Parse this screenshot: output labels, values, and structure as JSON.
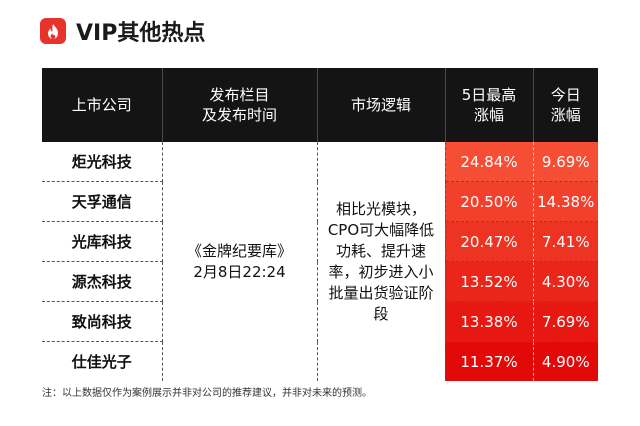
{
  "header": {
    "title": "VIP其他热点"
  },
  "colors": {
    "accent": "#e8332a",
    "header_bg": "#141414",
    "hot_red": "#ea1c14"
  },
  "table": {
    "headers": {
      "company": "上市公司",
      "column_line1": "发布栏目",
      "column_line2": "及发布时间",
      "logic": "市场逻辑",
      "gain5_line1": "5日最高",
      "gain5_line2": "涨幅",
      "today_line1": "今日",
      "today_line2": "涨幅"
    },
    "column_name": "《金牌纪要库》",
    "publish_time": "2月8日22:24",
    "logic_text": "相比光模块，CPO可大幅降低功耗、提升速率，初步进入小批量出货验证阶段",
    "rows": [
      {
        "company": "炬光科技",
        "gain5": "24.84%",
        "today": "9.69%"
      },
      {
        "company": "天孚通信",
        "gain5": "20.50%",
        "today": "14.38%"
      },
      {
        "company": "光库科技",
        "gain5": "20.47%",
        "today": "7.41%"
      },
      {
        "company": "源杰科技",
        "gain5": "13.52%",
        "today": "4.30%"
      },
      {
        "company": "致尚科技",
        "gain5": "13.38%",
        "today": "7.69%"
      },
      {
        "company": "仕佳光子",
        "gain5": "11.37%",
        "today": "4.90%"
      }
    ]
  },
  "note": "注：以上数据仅作为案例展示并非对公司的推荐建议，并非对未来的预测。"
}
